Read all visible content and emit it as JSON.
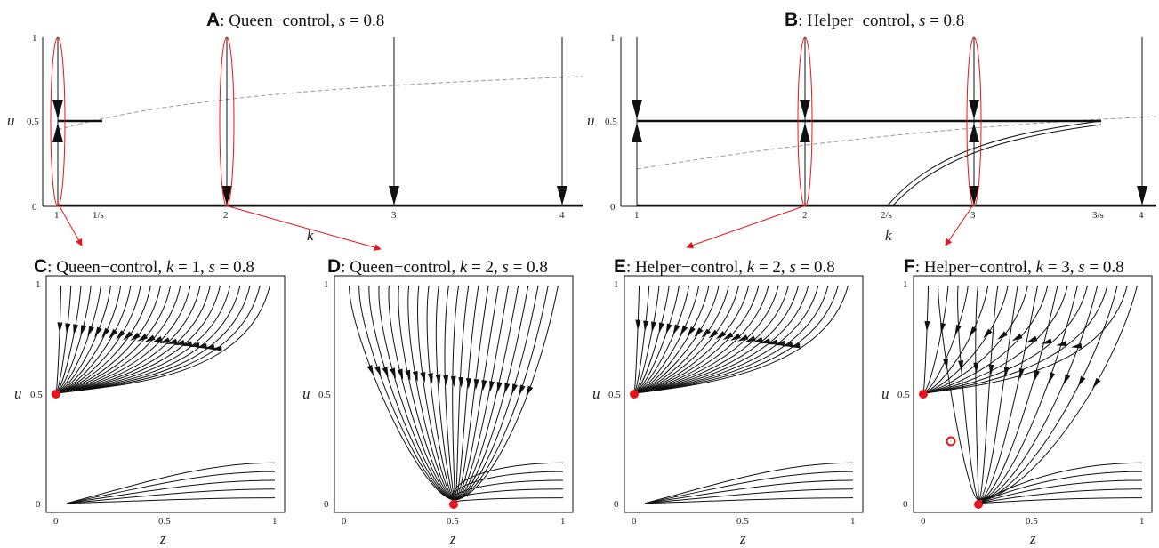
{
  "panels": {
    "A": {
      "letter": "A",
      "rest": ": Queen−control, ",
      "svar": "s",
      "seq": " = 0.8"
    },
    "B": {
      "letter": "B",
      "rest": ": Helper−control, ",
      "svar": "s",
      "seq": " = 0.8"
    },
    "C": {
      "letter": "C",
      "rest": ": Queen−control, ",
      "kvar": "k",
      "kval": " = 1, ",
      "svar": "s",
      "seq": " = 0.8"
    },
    "D": {
      "letter": "D",
      "rest": ": Queen−control, ",
      "kvar": "k",
      "kval": " = 2, ",
      "svar": "s",
      "seq": " = 0.8"
    },
    "E": {
      "letter": "E",
      "rest": ": Helper−control, ",
      "kvar": "k",
      "kval": " = 2, ",
      "svar": "s",
      "seq": " = 0.8"
    },
    "F": {
      "letter": "F",
      "rest": ": Helper−control, ",
      "kvar": "k",
      "kval": " = 3, ",
      "svar": "s",
      "seq": " = 0.8"
    }
  },
  "top_axes": {
    "y_label": "u",
    "x_label": "k",
    "y_ticks": [
      "1",
      "0.5",
      "0"
    ],
    "A_x_ticks": [
      "1",
      "1/s",
      "2",
      "3",
      "4"
    ],
    "B_x_ticks": [
      "1",
      "2",
      "2/s",
      "3",
      "3/s",
      "4"
    ]
  },
  "bottom_axes": {
    "y_label": "u",
    "x_label": "z",
    "y_ticks": [
      "1",
      "0.5",
      "0"
    ],
    "x_ticks": [
      "0",
      "0.5",
      "1"
    ]
  },
  "colors": {
    "axis": "#111111",
    "highlight": "#e8141c",
    "dashed": "#9a9a9a",
    "stream": "#111111"
  }
}
